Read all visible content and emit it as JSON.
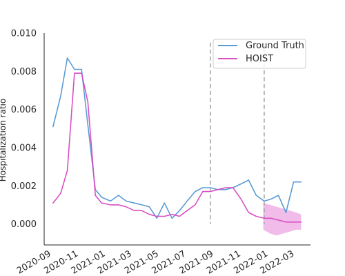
{
  "chart_data": {
    "type": "line",
    "title": "",
    "xlabel": "",
    "ylabel": "Hospitalization ratio",
    "ylim": [
      -0.0011,
      0.01
    ],
    "xlim": [
      "2020-08-25",
      "2022-04-15"
    ],
    "y_ticks": [
      0.0,
      0.002,
      0.004,
      0.006,
      0.008,
      0.01
    ],
    "y_tick_labels": [
      "0.000",
      "0.002",
      "0.004",
      "0.006",
      "0.008",
      "0.010"
    ],
    "x_ticks": [
      "2020-09-01",
      "2020-11-01",
      "2021-01-01",
      "2021-03-01",
      "2021-05-01",
      "2021-07-01",
      "2021-09-01",
      "2021-11-01",
      "2022-01-01",
      "2022-03-01"
    ],
    "x_tick_labels": [
      "2020-09",
      "2020-11",
      "2021-01",
      "2021-03",
      "2021-05",
      "2021-07",
      "2021-09",
      "2021-11",
      "2022-01",
      "2022-03"
    ],
    "grid": false,
    "legend_position": "top-right",
    "series": [
      {
        "name": "Ground Truth",
        "color": "#5b9bd5",
        "x": [
          "2020-09-14",
          "2020-10-01",
          "2020-10-16",
          "2020-11-01",
          "2020-11-17",
          "2020-12-01",
          "2020-12-18",
          "2021-01-01",
          "2021-01-21",
          "2021-02-08",
          "2021-02-25",
          "2021-03-15",
          "2021-04-01",
          "2021-04-18",
          "2021-05-05",
          "2021-05-22",
          "2021-06-08",
          "2021-06-25",
          "2021-07-12",
          "2021-07-30",
          "2021-08-16",
          "2021-09-02",
          "2021-09-19",
          "2021-10-06",
          "2021-10-23",
          "2021-11-10",
          "2021-11-27",
          "2021-12-14",
          "2022-01-01",
          "2022-01-16",
          "2022-02-02",
          "2022-02-19",
          "2022-03-08",
          "2022-03-25"
        ],
        "y": [
          0.0051,
          0.0067,
          0.0087,
          0.0081,
          0.0081,
          0.0052,
          0.0018,
          0.0014,
          0.0012,
          0.0015,
          0.0012,
          0.0011,
          0.001,
          0.0009,
          0.0003,
          0.0011,
          0.0003,
          0.0007,
          0.0012,
          0.0017,
          0.0019,
          0.0019,
          0.0018,
          0.0018,
          0.0019,
          0.0021,
          0.0023,
          0.0015,
          0.0012,
          0.0013,
          0.0015,
          0.0006,
          0.0022,
          0.0022
        ]
      },
      {
        "name": "HOIST",
        "color": "#d94fc4",
        "x": [
          "2020-09-14",
          "2020-10-01",
          "2020-10-16",
          "2020-11-01",
          "2020-11-17",
          "2020-12-01",
          "2020-12-18",
          "2021-01-01",
          "2021-01-21",
          "2021-02-08",
          "2021-02-25",
          "2021-03-15",
          "2021-04-01",
          "2021-04-18",
          "2021-05-05",
          "2021-05-22",
          "2021-06-08",
          "2021-06-25",
          "2021-07-12",
          "2021-07-30",
          "2021-08-16",
          "2021-09-02",
          "2021-09-19",
          "2021-10-06",
          "2021-10-23",
          "2021-11-10",
          "2021-11-27",
          "2021-12-14",
          "2022-01-01",
          "2022-01-16",
          "2022-02-02",
          "2022-02-19",
          "2022-03-08",
          "2022-03-25"
        ],
        "y": [
          0.0011,
          0.0016,
          0.0028,
          0.0079,
          0.0079,
          0.0064,
          0.0015,
          0.0011,
          0.001,
          0.001,
          0.0009,
          0.0007,
          0.0007,
          0.0005,
          0.0004,
          0.0004,
          0.0005,
          0.0004,
          0.0007,
          0.001,
          0.0017,
          0.0017,
          0.0018,
          0.0019,
          0.0019,
          0.0013,
          0.0006,
          0.0004,
          0.0003,
          0.0003,
          0.0002,
          0.0001,
          0.0001,
          0.0001
        ],
        "band": {
          "x": [
            "2021-12-30",
            "2022-01-14",
            "2022-01-29",
            "2022-02-13",
            "2022-02-28",
            "2022-03-14",
            "2022-03-25"
          ],
          "lower": [
            -0.0003,
            -0.0005,
            -0.0006,
            -0.0005,
            -0.0004,
            -0.0003,
            -0.0003
          ],
          "upper": [
            0.0011,
            0.001,
            0.0009,
            0.0008,
            0.0007,
            0.0006,
            0.0005
          ]
        }
      }
    ],
    "vertical_lines": [
      {
        "x": "2021-09-02",
        "color": "#a6a6a6",
        "style": "dashed"
      },
      {
        "x": "2022-01-01",
        "color": "#a6a6a6",
        "style": "dashed"
      }
    ]
  }
}
